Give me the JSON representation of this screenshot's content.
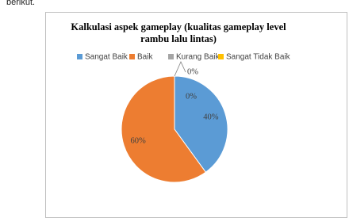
{
  "intro_text": "berikut.",
  "chart_data": {
    "type": "pie",
    "title": "Kalkulasi aspek gameplay (kualitas gameplay level rambu lalu lintas)",
    "categories": [
      "Sangat Baik",
      "Baik",
      "Kurang Baik",
      "Sangat Tidak Baik"
    ],
    "values": [
      40,
      60,
      0,
      0
    ],
    "value_labels": [
      "40%",
      "60%",
      "0%",
      "0%"
    ],
    "colors": [
      "#5b9bd5",
      "#ed7d31",
      "#a5a5a5",
      "#ffc000"
    ],
    "legend": "top"
  }
}
